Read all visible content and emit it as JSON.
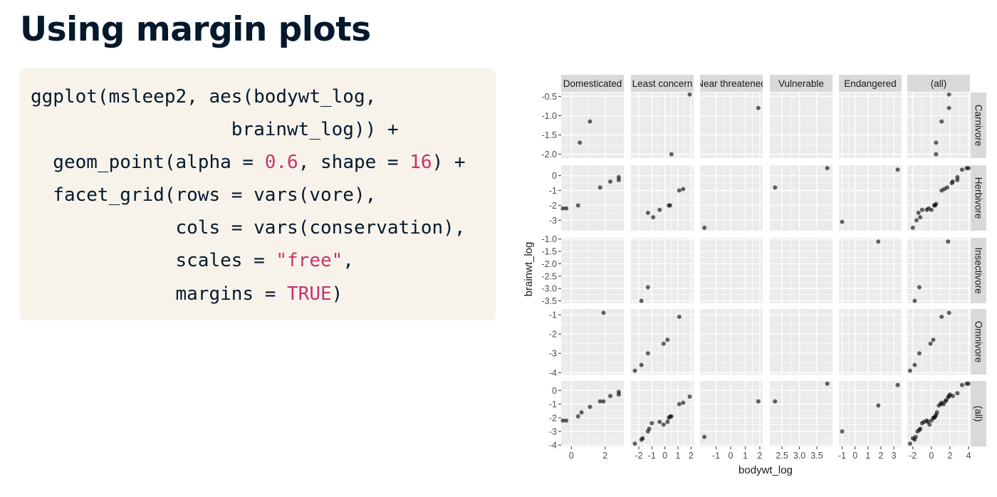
{
  "slide": {
    "title": "Using margin plots",
    "code_lines": [
      [
        {
          "t": "ggplot(msleep2, aes(bodywt_log,"
        }
      ],
      [
        {
          "t": "                  brainwt_log)) +"
        }
      ],
      [
        {
          "t": "  geom_point(alpha = "
        },
        {
          "t": "0.6",
          "lit": true
        },
        {
          "t": ", shape = "
        },
        {
          "t": "16",
          "lit": true
        },
        {
          "t": ") +"
        }
      ],
      [
        {
          "t": "  facet_grid(rows = vars(vore),"
        }
      ],
      [
        {
          "t": "             cols = vars(conservation),"
        }
      ],
      [
        {
          "t": "             scales = "
        },
        {
          "t": "\"free\"",
          "lit": true
        },
        {
          "t": ","
        }
      ],
      [
        {
          "t": "             margins = "
        },
        {
          "t": "TRUE",
          "lit": true
        },
        {
          "t": ")"
        }
      ]
    ]
  },
  "colors": {
    "title": "#05192d",
    "code_background": "#f7f3eb",
    "code_literal": "#c7336a",
    "panel_background": "#ebebeb",
    "strip_background": "#d9d9d9",
    "point": "#000000"
  },
  "chart_data": {
    "type": "scatter",
    "facet": "grid",
    "point_alpha": 0.6,
    "xlabel": "bodywt_log",
    "ylabel": "brainwt_log",
    "columns": [
      {
        "label": "Domesticated",
        "xlim": [
          -0.6,
          3.1
        ],
        "xticks": [
          0,
          2
        ],
        "xtick_labels": [
          "0",
          "2"
        ]
      },
      {
        "label": "Least concern",
        "xlim": [
          -2.6,
          2.2
        ],
        "xticks": [
          -2,
          -1,
          0,
          1,
          2
        ],
        "xtick_labels": [
          "-2",
          "-1",
          "0",
          "1",
          "2"
        ]
      },
      {
        "label": "Near threatened",
        "xlim": [
          -2.1,
          2.2
        ],
        "xticks": [
          -1,
          0,
          1,
          2
        ],
        "xtick_labels": [
          "-1",
          "0",
          "1",
          "2"
        ]
      },
      {
        "label": "Vulnerable",
        "xlim": [
          2.15,
          3.95
        ],
        "xticks": [
          2.5,
          3.0,
          3.5
        ],
        "xtick_labels": [
          "2.5",
          "3.0",
          "3.5"
        ]
      },
      {
        "label": "Endangered",
        "xlim": [
          -1.25,
          3.6
        ],
        "xticks": [
          -1,
          0,
          1,
          2,
          3
        ],
        "xtick_labels": [
          "-1",
          "0",
          "1",
          "2",
          "3"
        ]
      },
      {
        "label": "(all)",
        "xlim": [
          -2.6,
          4.15
        ],
        "xticks": [
          -2,
          0,
          2,
          4
        ],
        "xtick_labels": [
          "-2",
          "0",
          "2",
          "4"
        ]
      }
    ],
    "rows": [
      {
        "label": "Carnivore",
        "ylim": [
          -2.1,
          -0.4
        ],
        "yticks": [
          -2.0,
          -1.5,
          -1.0,
          -0.5
        ],
        "ytick_labels": [
          "-2.0",
          "-1.5",
          "-1.0",
          "-0.5"
        ]
      },
      {
        "label": "Herbivore",
        "ylim": [
          -3.7,
          0.7
        ],
        "yticks": [
          -3,
          -2,
          -1,
          0
        ],
        "ytick_labels": [
          "-3",
          "-2",
          "-1",
          "0"
        ]
      },
      {
        "label": "Insectivore",
        "ylim": [
          -3.6,
          -0.95
        ],
        "yticks": [
          -3.5,
          -3.0,
          -2.5,
          -2.0,
          -1.5,
          -1.0
        ],
        "ytick_labels": [
          "-3.5",
          "-3.0",
          "-2.5",
          "-2.0",
          "-1.5",
          "-1.0"
        ]
      },
      {
        "label": "Omnivore",
        "ylim": [
          -4.1,
          -0.7
        ],
        "yticks": [
          -4,
          -3,
          -2,
          -1
        ],
        "ytick_labels": [
          "-4",
          "-3",
          "-2",
          "-1"
        ]
      },
      {
        "label": "(all)",
        "ylim": [
          -4.1,
          0.7
        ],
        "yticks": [
          -4,
          -3,
          -2,
          -1,
          0
        ],
        "ytick_labels": [
          "-4",
          "-3",
          "-2",
          "-1",
          "0"
        ]
      }
    ],
    "points": [
      [
        [
          [
            0.5,
            -1.7
          ],
          [
            1.1,
            -1.15
          ]
        ],
        [
          [
            1.9,
            -0.45
          ],
          [
            0.5,
            -2.0
          ]
        ],
        [
          [
            1.9,
            -0.8
          ]
        ],
        [],
        [],
        [
          [
            0.5,
            -2.0
          ],
          [
            0.5,
            -1.7
          ],
          [
            1.1,
            -1.15
          ],
          [
            1.9,
            -0.8
          ],
          [
            1.9,
            -0.45
          ]
        ]
      ],
      [
        [
          [
            -0.3,
            -2.2
          ],
          [
            -0.5,
            -2.2
          ],
          [
            0.4,
            -2.0
          ],
          [
            1.7,
            -0.8
          ],
          [
            2.3,
            -0.4
          ],
          [
            2.8,
            -0.3
          ],
          [
            2.8,
            -0.1
          ]
        ],
        [
          [
            -1.3,
            -2.5
          ],
          [
            -0.9,
            -2.8
          ],
          [
            -0.4,
            -2.3
          ],
          [
            0.3,
            -2.0
          ],
          [
            0.4,
            -2.0
          ],
          [
            1.1,
            -1.0
          ],
          [
            1.4,
            -0.9
          ]
        ],
        [
          [
            -1.8,
            -3.5
          ]
        ],
        [
          [
            2.3,
            -0.8
          ],
          [
            3.8,
            0.5
          ]
        ],
        [
          [
            -1.0,
            -3.1
          ],
          [
            3.3,
            0.4
          ]
        ],
        [
          [
            -2.0,
            -3.5
          ],
          [
            -1.6,
            -3.0
          ],
          [
            -1.4,
            -2.5
          ],
          [
            -1.2,
            -2.8
          ],
          [
            -1.0,
            -2.3
          ],
          [
            -0.5,
            -2.3
          ],
          [
            -0.3,
            -2.2
          ],
          [
            0.0,
            -2.3
          ],
          [
            0.3,
            -2.0
          ],
          [
            0.4,
            -2.0
          ],
          [
            0.5,
            -1.9
          ],
          [
            1.1,
            -1.0
          ],
          [
            1.4,
            -0.9
          ],
          [
            1.7,
            -0.8
          ],
          [
            2.2,
            -0.5
          ],
          [
            2.3,
            -0.4
          ],
          [
            2.8,
            -0.3
          ],
          [
            2.8,
            -0.1
          ],
          [
            3.3,
            0.4
          ],
          [
            3.8,
            0.5
          ],
          [
            4.0,
            0.5
          ]
        ]
      ],
      [
        [],
        [
          [
            -1.3,
            -2.95
          ],
          [
            -1.8,
            -3.5
          ]
        ],
        [],
        [],
        [
          [
            1.8,
            -1.1
          ]
        ],
        [
          [
            -1.8,
            -3.5
          ],
          [
            -1.3,
            -2.95
          ],
          [
            1.8,
            -1.1
          ]
        ]
      ],
      [
        [
          [
            1.9,
            -0.9
          ]
        ],
        [
          [
            -2.3,
            -3.9
          ],
          [
            -1.8,
            -3.6
          ],
          [
            -1.3,
            -3.0
          ],
          [
            -0.1,
            -2.5
          ],
          [
            0.2,
            -2.3
          ],
          [
            1.1,
            -1.1
          ]
        ],
        [],
        [],
        [],
        [
          [
            -2.3,
            -3.9
          ],
          [
            -1.8,
            -3.6
          ],
          [
            -1.3,
            -3.0
          ],
          [
            -0.1,
            -2.5
          ],
          [
            0.2,
            -2.3
          ],
          [
            1.1,
            -1.1
          ],
          [
            1.9,
            -0.9
          ]
        ]
      ],
      [
        [
          [
            -0.3,
            -2.2
          ],
          [
            -0.5,
            -2.2
          ],
          [
            0.4,
            -1.9
          ],
          [
            0.6,
            -1.6
          ],
          [
            1.1,
            -1.2
          ],
          [
            1.7,
            -0.8
          ],
          [
            1.9,
            -0.8
          ],
          [
            2.3,
            -0.4
          ],
          [
            2.8,
            -0.3
          ],
          [
            2.8,
            -0.1
          ]
        ],
        [
          [
            -2.3,
            -3.9
          ],
          [
            -1.8,
            -3.6
          ],
          [
            -1.7,
            -3.5
          ],
          [
            -1.3,
            -3.0
          ],
          [
            -1.2,
            -2.8
          ],
          [
            -1.0,
            -2.4
          ],
          [
            -0.4,
            -2.3
          ],
          [
            -0.1,
            -2.5
          ],
          [
            0.2,
            -2.3
          ],
          [
            0.3,
            -2.0
          ],
          [
            0.4,
            -1.9
          ],
          [
            0.5,
            -1.9
          ],
          [
            1.1,
            -1.0
          ],
          [
            1.4,
            -0.9
          ],
          [
            1.9,
            -0.45
          ]
        ],
        [
          [
            -1.8,
            -3.4
          ],
          [
            1.9,
            -0.8
          ]
        ],
        [
          [
            2.3,
            -0.8
          ],
          [
            3.8,
            0.5
          ]
        ],
        [
          [
            -1.0,
            -3.0
          ],
          [
            1.8,
            -1.1
          ],
          [
            3.3,
            0.4
          ]
        ],
        [
          [
            -2.3,
            -3.9
          ],
          [
            -2.0,
            -3.5
          ],
          [
            -1.8,
            -3.6
          ],
          [
            -1.7,
            -3.4
          ],
          [
            -1.5,
            -3.0
          ],
          [
            -1.3,
            -2.9
          ],
          [
            -1.2,
            -2.8
          ],
          [
            -1.0,
            -2.4
          ],
          [
            -0.8,
            -2.3
          ],
          [
            -0.5,
            -2.2
          ],
          [
            -0.4,
            -2.3
          ],
          [
            -0.2,
            -2.5
          ],
          [
            0.0,
            -2.2
          ],
          [
            0.2,
            -2.0
          ],
          [
            0.3,
            -2.0
          ],
          [
            0.4,
            -1.9
          ],
          [
            0.5,
            -1.8
          ],
          [
            0.6,
            -1.6
          ],
          [
            0.8,
            -1.1
          ],
          [
            1.0,
            -1.0
          ],
          [
            1.1,
            -0.9
          ],
          [
            1.3,
            -1.0
          ],
          [
            1.5,
            -0.8
          ],
          [
            1.6,
            -0.7
          ],
          [
            1.8,
            -0.5
          ],
          [
            1.9,
            -0.4
          ],
          [
            2.0,
            -0.3
          ],
          [
            2.3,
            -0.4
          ],
          [
            2.8,
            -0.2
          ],
          [
            3.3,
            0.4
          ],
          [
            3.8,
            0.5
          ],
          [
            4.0,
            0.5
          ]
        ]
      ]
    ]
  }
}
